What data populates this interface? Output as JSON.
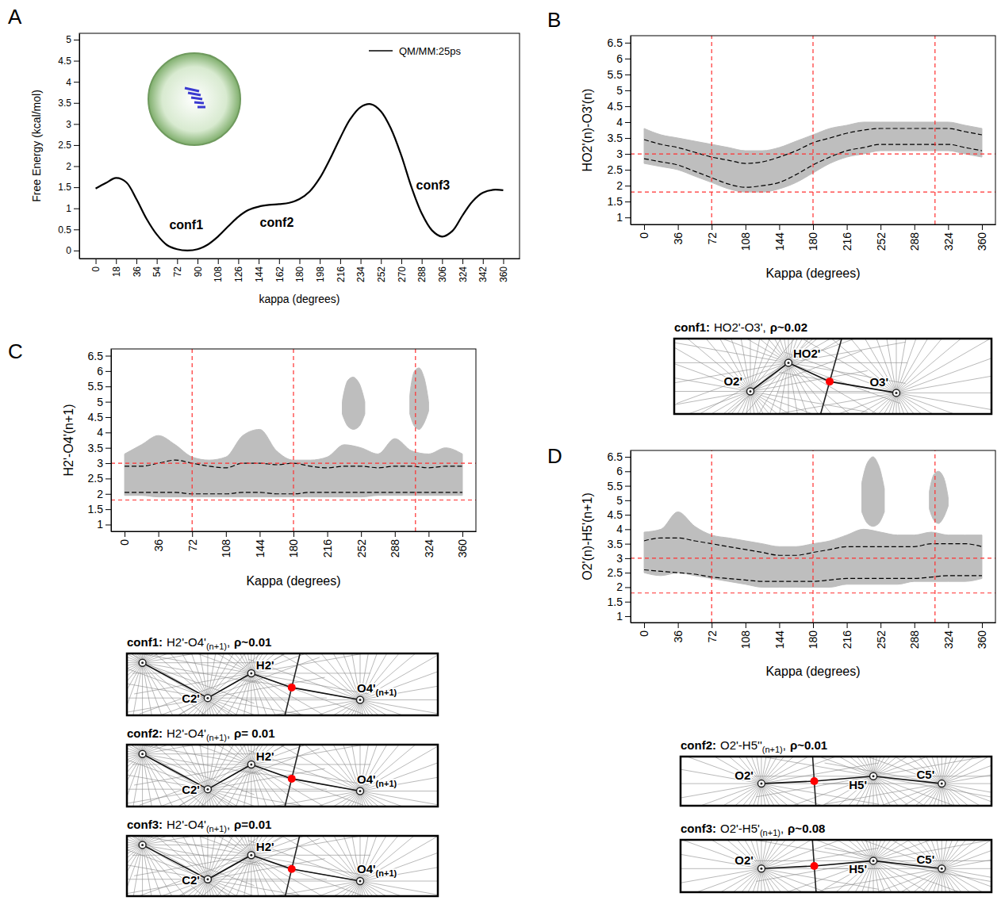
{
  "chart_data": [
    {
      "panel": "A",
      "type": "line",
      "x": [
        0,
        9,
        18,
        27,
        36,
        45,
        54,
        63,
        72,
        81,
        90,
        99,
        108,
        117,
        126,
        135,
        144,
        153,
        162,
        171,
        180,
        189,
        198,
        207,
        216,
        225,
        234,
        243,
        252,
        261,
        270,
        279,
        288,
        297,
        306,
        315,
        324,
        333,
        342,
        351,
        360
      ],
      "series": [
        {
          "name": "QM/MM:25ps",
          "color": "#000000",
          "values": [
            1.47,
            1.6,
            1.72,
            1.62,
            1.22,
            0.75,
            0.38,
            0.13,
            0.03,
            0.0,
            0.03,
            0.14,
            0.33,
            0.57,
            0.8,
            0.96,
            1.04,
            1.08,
            1.1,
            1.13,
            1.22,
            1.4,
            1.72,
            2.17,
            2.67,
            3.12,
            3.4,
            3.47,
            3.3,
            2.88,
            2.25,
            1.5,
            0.88,
            0.48,
            0.33,
            0.46,
            0.83,
            1.17,
            1.37,
            1.44,
            1.43
          ]
        }
      ],
      "xlabel": "kappa (degrees)",
      "ylabel": "Free Energy (kcal/mol)",
      "xlim": [
        -14.4,
        374.4
      ],
      "ylim": [
        -0.19,
        5.15
      ],
      "xticks": [
        0,
        18,
        36,
        54,
        72,
        90,
        108,
        126,
        144,
        162,
        180,
        198,
        216,
        234,
        252,
        270,
        288,
        306,
        324,
        342,
        360
      ],
      "yticks": [
        0,
        0.5,
        1,
        1.5,
        2,
        2.5,
        3,
        3.5,
        4,
        4.5,
        5
      ],
      "legend": "top-right",
      "annotations": [
        "conf1",
        "conf2",
        "conf3"
      ]
    },
    {
      "panel": "B",
      "type": "density",
      "color": "#bebebe",
      "x": [
        0,
        18,
        36,
        54,
        72,
        90,
        108,
        126,
        144,
        162,
        180,
        198,
        216,
        234,
        252,
        270,
        288,
        306,
        324,
        342,
        360
      ],
      "cloud": {
        "lower": [
          2.7,
          2.6,
          2.5,
          2.3,
          2.1,
          1.9,
          1.8,
          1.8,
          1.9,
          2.1,
          2.4,
          2.7,
          2.9,
          3.0,
          3.1,
          3.1,
          3.1,
          3.1,
          3.1,
          3.0,
          2.9
        ],
        "upper": [
          3.8,
          3.6,
          3.5,
          3.4,
          3.3,
          3.2,
          3.1,
          3.1,
          3.2,
          3.4,
          3.6,
          3.8,
          3.9,
          4.0,
          4.0,
          4.0,
          4.0,
          4.0,
          4.0,
          3.9,
          3.8
        ]
      },
      "contour": {
        "lower": [
          2.85,
          2.75,
          2.65,
          2.45,
          2.25,
          2.05,
          1.95,
          2.0,
          2.1,
          2.35,
          2.65,
          2.9,
          3.1,
          3.2,
          3.3,
          3.3,
          3.3,
          3.3,
          3.3,
          3.2,
          3.1
        ],
        "upper": [
          3.45,
          3.3,
          3.2,
          3.05,
          2.9,
          2.8,
          2.7,
          2.75,
          2.9,
          3.1,
          3.35,
          3.5,
          3.65,
          3.75,
          3.8,
          3.8,
          3.8,
          3.8,
          3.8,
          3.7,
          3.6
        ]
      },
      "vlines": [
        72,
        180,
        310
      ],
      "hlines": [
        1.8,
        3
      ],
      "xlabel": "Kappa (degrees)",
      "ylabel": "HO2'(n)-O3'(n)",
      "xlim": [
        -14.4,
        374.4
      ],
      "ylim": [
        0.78,
        6.72
      ],
      "xticks": [
        0,
        36,
        72,
        108,
        144,
        180,
        216,
        252,
        288,
        324,
        360
      ],
      "yticks": [
        1,
        1.5,
        2,
        2.5,
        3,
        3.5,
        4,
        4.5,
        5,
        5.5,
        6,
        6.5
      ]
    },
    {
      "panel": "C",
      "type": "density",
      "color": "#bebebe",
      "x": [
        0,
        18,
        36,
        54,
        72,
        90,
        108,
        126,
        144,
        162,
        180,
        198,
        216,
        234,
        252,
        270,
        288,
        306,
        324,
        342,
        360
      ],
      "cloud": {
        "lower": [
          1.95,
          1.95,
          1.9,
          1.9,
          1.9,
          1.9,
          1.9,
          1.9,
          1.9,
          1.9,
          1.9,
          1.9,
          1.9,
          1.9,
          1.9,
          1.95,
          1.95,
          1.95,
          1.95,
          1.95,
          1.95
        ],
        "upper": [
          3.3,
          3.6,
          3.9,
          3.6,
          3.2,
          3.1,
          3.2,
          3.9,
          4.1,
          3.4,
          3.1,
          3.1,
          3.2,
          3.6,
          3.5,
          3.3,
          3.8,
          3.4,
          3.3,
          3.5,
          3.3
        ]
      },
      "clusters": [
        {
          "x": [
            232,
            238,
            244,
            250,
            256
          ],
          "lower": [
            4.6,
            4.2,
            4.1,
            4.2,
            4.6
          ],
          "upper": [
            5.0,
            5.7,
            5.8,
            5.6,
            5.0
          ]
        },
        {
          "x": [
            304,
            309,
            314,
            319,
            324
          ],
          "lower": [
            4.6,
            4.2,
            4.1,
            4.3,
            4.7
          ],
          "upper": [
            5.2,
            6.0,
            6.1,
            5.8,
            5.0
          ]
        }
      ],
      "contour": {
        "lower": [
          2.05,
          2.05,
          2.05,
          2.05,
          2.0,
          2.0,
          2.0,
          2.05,
          2.05,
          2.0,
          2.0,
          2.05,
          2.05,
          2.05,
          2.05,
          2.05,
          2.05,
          2.05,
          2.05,
          2.05,
          2.05
        ],
        "upper": [
          2.9,
          2.9,
          3.0,
          3.1,
          3.0,
          2.9,
          2.85,
          3.0,
          3.0,
          2.95,
          3.0,
          2.9,
          2.85,
          2.9,
          2.9,
          2.85,
          2.9,
          2.9,
          2.85,
          2.9,
          2.9
        ]
      },
      "vlines": [
        72,
        180,
        310
      ],
      "hlines": [
        1.8,
        3
      ],
      "xlabel": "Kappa (degrees)",
      "ylabel": "H2'-O4'(n+1)",
      "xlim": [
        -14.4,
        374.4
      ],
      "ylim": [
        0.78,
        6.72
      ],
      "xticks": [
        0,
        36,
        72,
        108,
        144,
        180,
        216,
        252,
        288,
        324,
        360
      ],
      "yticks": [
        1,
        1.5,
        2,
        2.5,
        3,
        3.5,
        4,
        4.5,
        5,
        5.5,
        6,
        6.5
      ]
    },
    {
      "panel": "D",
      "type": "density",
      "color": "#bebebe",
      "x": [
        0,
        18,
        36,
        54,
        72,
        90,
        108,
        126,
        144,
        162,
        180,
        198,
        216,
        234,
        252,
        270,
        288,
        306,
        324,
        342,
        360
      ],
      "cloud": {
        "lower": [
          2.5,
          2.4,
          2.5,
          2.4,
          2.3,
          2.2,
          2.1,
          2.0,
          2.0,
          2.0,
          2.0,
          2.0,
          2.1,
          2.1,
          2.1,
          2.1,
          2.2,
          2.2,
          2.2,
          2.2,
          2.3
        ],
        "upper": [
          3.9,
          4.0,
          4.6,
          4.1,
          3.8,
          3.7,
          3.6,
          3.5,
          3.4,
          3.4,
          3.5,
          3.6,
          3.8,
          4.0,
          3.9,
          3.8,
          3.8,
          3.9,
          3.8,
          3.8,
          3.8
        ]
      },
      "clusters": [
        {
          "x": [
            232,
            238,
            244,
            250,
            256
          ],
          "lower": [
            4.6,
            4.2,
            4.1,
            4.2,
            4.6
          ],
          "upper": [
            5.6,
            6.3,
            6.5,
            6.2,
            5.4
          ]
        },
        {
          "x": [
            304,
            309,
            314,
            319,
            324
          ],
          "lower": [
            4.7,
            4.3,
            4.2,
            4.4,
            4.8
          ],
          "upper": [
            5.3,
            5.9,
            6.0,
            5.8,
            5.1
          ]
        }
      ],
      "contour": {
        "lower": [
          2.6,
          2.55,
          2.5,
          2.45,
          2.35,
          2.3,
          2.25,
          2.2,
          2.2,
          2.2,
          2.2,
          2.25,
          2.3,
          2.3,
          2.3,
          2.3,
          2.3,
          2.35,
          2.4,
          2.4,
          2.4
        ],
        "upper": [
          3.6,
          3.7,
          3.7,
          3.6,
          3.5,
          3.4,
          3.3,
          3.2,
          3.1,
          3.1,
          3.2,
          3.3,
          3.4,
          3.4,
          3.4,
          3.4,
          3.4,
          3.5,
          3.5,
          3.5,
          3.4
        ]
      },
      "vlines": [
        72,
        180,
        310
      ],
      "hlines": [
        1.8,
        3
      ],
      "xlabel": "Kappa (degrees)",
      "ylabel": "O2'(n)-H5'(n+1)",
      "xlim": [
        -14.4,
        374.4
      ],
      "ylim": [
        0.78,
        6.72
      ],
      "xticks": [
        0,
        36,
        72,
        108,
        144,
        180,
        216,
        252,
        288,
        324,
        360
      ],
      "yticks": [
        1,
        1.5,
        2,
        2.5,
        3,
        3.5,
        4,
        4.5,
        5,
        5.5,
        6,
        6.5
      ]
    }
  ],
  "diagrams": [
    {
      "conf": "conf1:",
      "bond": "HO2'-O3'",
      "sep": ",",
      "rho": "ρ~0.02",
      "atoms": [
        {
          "label": "O2'"
        },
        {
          "label": "HO2'"
        },
        {
          "label": "O3'"
        }
      ]
    },
    {
      "conf": "conf1:",
      "bond": "H2'-O4'",
      "bond_sub": "(n+1)",
      "sep": ",",
      "rho": "ρ~0.01",
      "atoms": [
        {
          "label": "C2'"
        },
        {
          "label": "H2'"
        },
        {
          "label": "O4'",
          "sub": "(n+1)"
        }
      ]
    },
    {
      "conf": "conf2:",
      "bond": "H2'-O4'",
      "bond_sub": "(n+1)",
      "sep": ",",
      "rho": "ρ= 0.01",
      "atoms": [
        {
          "label": "C2'"
        },
        {
          "label": "H2'"
        },
        {
          "label": "O4'",
          "sub": "(n+1)"
        }
      ]
    },
    {
      "conf": "conf3:",
      "bond": "H2'-O4'",
      "bond_sub": "(n+1)",
      "sep": ",",
      "rho": "ρ=0.01",
      "atoms": [
        {
          "label": "C2'"
        },
        {
          "label": "H2'"
        },
        {
          "label": "O4'",
          "sub": "(n+1)"
        }
      ]
    },
    {
      "conf": "conf2:",
      "bond": "O2'-H5''",
      "bond_sub": "(n+1)",
      "sep": ",",
      "rho": "ρ~0.01",
      "atoms": [
        {
          "label": "O2'"
        },
        {
          "label": "H5'"
        },
        {
          "label": "C5'"
        }
      ]
    },
    {
      "conf": "conf3:",
      "bond": "O2'-H5'",
      "bond_sub": "(n+1)",
      "sep": ",",
      "rho": "ρ~0.08",
      "atoms": [
        {
          "label": "O2'"
        },
        {
          "label": "H5'"
        },
        {
          "label": "C5'"
        }
      ]
    }
  ]
}
